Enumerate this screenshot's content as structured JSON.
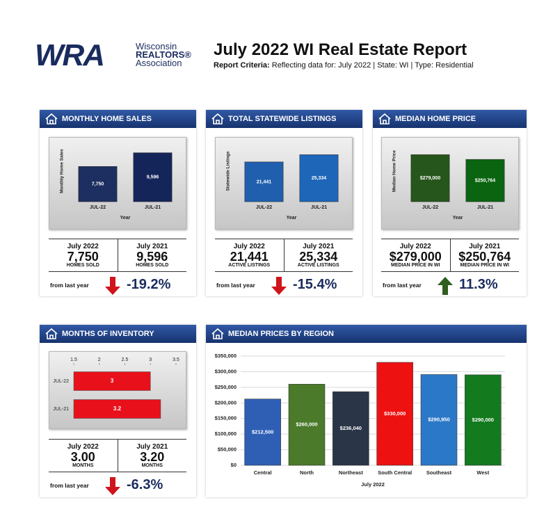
{
  "header": {
    "logo": {
      "mark": "WRA",
      "line1": "Wisconsin",
      "line2": "REALTORS®",
      "line3": "Association"
    },
    "title": "July 2022 WI Real Estate Report",
    "criteria_label": "Report Criteria:",
    "criteria": "Reflecting data for: July 2022 | State: WI | Type: Residential"
  },
  "panels": [
    {
      "title": "MONTHLY HOME SALES",
      "stats": {
        "columns": [
          {
            "period": "July 2022",
            "value": "7,750",
            "label": "HOMES SOLD"
          },
          {
            "period": "July 2021",
            "value": "9,596",
            "label": "HOMES SOLD"
          }
        ],
        "change_label": "from last year",
        "change": "-19.2%",
        "trend": "down"
      }
    },
    {
      "title": "TOTAL STATEWIDE LISTINGS",
      "stats": {
        "columns": [
          {
            "period": "July 2022",
            "value": "21,441",
            "label": "ACTIVE LISTINGS"
          },
          {
            "period": "July 2021",
            "value": "25,334",
            "label": "ACTIVE LISTINGS"
          }
        ],
        "change_label": "from last year",
        "change": "-15.4%",
        "trend": "down"
      }
    },
    {
      "title": "MEDIAN HOME PRICE",
      "stats": {
        "columns": [
          {
            "period": "July 2022",
            "value": "$279,000",
            "label": "MEDIAN PRICE IN WI"
          },
          {
            "period": "July 2021",
            "value": "$250,764",
            "label": "MEDIAN PRICE IN WI"
          }
        ],
        "change_label": "from last year",
        "change": "11.3%",
        "trend": "up"
      }
    },
    {
      "title": "MONTHS OF INVENTORY",
      "stats": {
        "columns": [
          {
            "period": "July 2022",
            "value": "3.00",
            "label": "MONTHS"
          },
          {
            "period": "July 2021",
            "value": "3.20",
            "label": "MONTHS"
          }
        ],
        "change_label": "from last year",
        "change": "-6.3%",
        "trend": "down"
      }
    },
    {
      "title": "MEDIAN PRICES BY REGION"
    }
  ],
  "chart_data": [
    {
      "type": "bar",
      "categories": [
        "JUL-22",
        "JUL-21"
      ],
      "values": [
        7750,
        9596
      ],
      "value_labels": [
        "7,750",
        "9,596"
      ],
      "colors": [
        "#1d2e60",
        "#14255a"
      ],
      "y_label": "Monthly Home Sales",
      "x_label": "Year",
      "ylim": [
        3000,
        10500
      ]
    },
    {
      "type": "bar",
      "categories": [
        "JUL-22",
        "JUL-21"
      ],
      "values": [
        21441,
        25334
      ],
      "value_labels": [
        "21,441",
        "25,334"
      ],
      "colors": [
        "#1f5fae",
        "#1d66b8"
      ],
      "y_label": "Statewide Listings",
      "x_label": "Year",
      "ylim": [
        0,
        30000
      ]
    },
    {
      "type": "bar",
      "categories": [
        "JUL-22",
        "JUL-21"
      ],
      "values": [
        279000,
        250764
      ],
      "value_labels": [
        "$279,000",
        "$250,764"
      ],
      "colors": [
        "#27561c",
        "#0b6410"
      ],
      "y_label": "Median Home Price",
      "x_label": "Year",
      "ylim": [
        0,
        330000
      ]
    },
    {
      "type": "bar",
      "orientation": "horizontal",
      "categories": [
        "JUL-22",
        "JUL-21"
      ],
      "values": [
        3,
        3.2
      ],
      "color": "#e8111b",
      "xlim": [
        1.5,
        3.5
      ],
      "xticks": [
        1.5,
        2,
        2.5,
        3,
        3.5
      ]
    },
    {
      "type": "bar",
      "categories": [
        "Central",
        "North",
        "Northeast",
        "South Central",
        "Southeast",
        "West"
      ],
      "values": [
        212500,
        260000,
        236040,
        330000,
        290950,
        290000
      ],
      "value_labels": [
        "$212,500",
        "$260,000",
        "$236,040",
        "$330,000",
        "$290,950",
        "$290,000"
      ],
      "colors": [
        "#2f5fb5",
        "#4a7a2a",
        "#2a3548",
        "#ee1111",
        "#2c78c8",
        "#147a1e"
      ],
      "x_label": "July 2022",
      "ylim": [
        0,
        350000
      ],
      "yticks": [
        {
          "value": 0,
          "label": "$0"
        },
        {
          "value": 50000,
          "label": "$50,000"
        },
        {
          "value": 100000,
          "label": "$100,000"
        },
        {
          "value": 150000,
          "label": "$150,000"
        },
        {
          "value": 200000,
          "label": "$200,000"
        },
        {
          "value": 250000,
          "label": "$250,000"
        },
        {
          "value": 300000,
          "label": "$300,000"
        },
        {
          "value": 350000,
          "label": "$350,000"
        }
      ],
      "grid": true
    }
  ]
}
